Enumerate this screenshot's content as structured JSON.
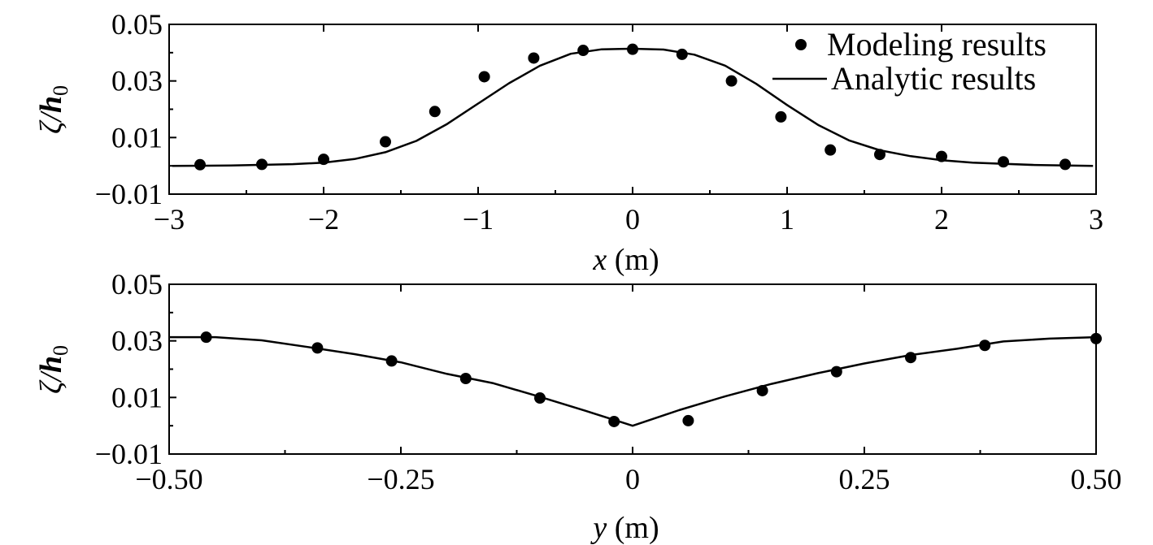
{
  "chart_data": [
    {
      "type": "scatter",
      "xlabel": {
        "var": "x",
        "unit": " (m)"
      },
      "ylabel": {
        "main": "ζ/",
        "var": "h",
        "sub": "0"
      },
      "xlim": [
        -3,
        3
      ],
      "ylim": [
        -0.01,
        0.05
      ],
      "xticks": [
        -3,
        -2,
        -1,
        0,
        1,
        2,
        3
      ],
      "xtick_labels": [
        "−3",
        "−2",
        "−1",
        "0",
        "1",
        "2",
        "3"
      ],
      "yticks": [
        -0.01,
        0.01,
        0.03,
        0.05
      ],
      "ytick_labels": [
        "−0.01",
        "0.01",
        "0.03",
        "0.05"
      ],
      "legend": {
        "position": "top-right",
        "entries": [
          "Modeling results",
          "Analytic results"
        ]
      },
      "series": [
        {
          "name": "Modeling results",
          "kind": "markers",
          "x": [
            -2.8,
            -2.4,
            -2.0,
            -1.6,
            -1.28,
            -0.96,
            -0.64,
            -0.32,
            0.0,
            0.32,
            0.64,
            0.96,
            1.28,
            1.6,
            2.0,
            2.4,
            2.8
          ],
          "y": [
            0.0004,
            0.0005,
            0.0023,
            0.0085,
            0.0192,
            0.0315,
            0.0381,
            0.0408,
            0.0412,
            0.0394,
            0.03,
            0.0173,
            0.0056,
            0.004,
            0.0033,
            0.0014,
            0.0005
          ]
        },
        {
          "name": "Analytic results",
          "kind": "line",
          "x": [
            -2.98,
            -2.6,
            -2.2,
            -2.0,
            -1.8,
            -1.6,
            -1.4,
            -1.2,
            -1.0,
            -0.8,
            -0.6,
            -0.4,
            -0.2,
            0.0,
            0.2,
            0.4,
            0.6,
            0.8,
            1.0,
            1.2,
            1.4,
            1.6,
            1.8,
            2.0,
            2.2,
            2.6,
            2.98
          ],
          "y": [
            0.0,
            0.0001,
            0.0006,
            0.0011,
            0.0024,
            0.0048,
            0.0088,
            0.0148,
            0.022,
            0.0292,
            0.0354,
            0.0396,
            0.0412,
            0.0414,
            0.0411,
            0.0393,
            0.0354,
            0.029,
            0.0215,
            0.0145,
            0.009,
            0.0055,
            0.0034,
            0.002,
            0.0011,
            0.0003,
            0.0
          ]
        }
      ]
    },
    {
      "type": "scatter",
      "xlabel": {
        "var": "y",
        "unit": " (m)"
      },
      "ylabel": {
        "main": "ζ/",
        "var": "h",
        "sub": "0"
      },
      "xlim": [
        -0.5,
        0.5
      ],
      "ylim": [
        -0.01,
        0.05
      ],
      "xticks": [
        -0.5,
        -0.25,
        0,
        0.25,
        0.5
      ],
      "xtick_labels": [
        "−0.50",
        "−0.25",
        "0",
        "0.25",
        "0.50"
      ],
      "yticks": [
        -0.01,
        0.01,
        0.03,
        0.05
      ],
      "ytick_labels": [
        "−0.01",
        "0.01",
        "0.03",
        "0.05"
      ],
      "series": [
        {
          "name": "Modeling results",
          "kind": "markers",
          "x": [
            -0.46,
            -0.34,
            -0.26,
            -0.18,
            -0.1,
            -0.02,
            0.06,
            0.14,
            0.22,
            0.3,
            0.38,
            0.5
          ],
          "y": [
            0.0313,
            0.0275,
            0.0229,
            0.0167,
            0.0098,
            0.0015,
            0.0018,
            0.0124,
            0.0191,
            0.0241,
            0.0284,
            0.0308
          ]
        },
        {
          "name": "Analytic results",
          "kind": "line",
          "x": [
            -0.5,
            -0.45,
            -0.4,
            -0.35,
            -0.3,
            -0.25,
            -0.2,
            -0.15,
            -0.1,
            -0.05,
            0.0,
            0.05,
            0.1,
            0.15,
            0.2,
            0.25,
            0.3,
            0.35,
            0.4,
            0.45,
            0.5
          ],
          "y": [
            0.0313,
            0.0313,
            0.0302,
            0.0278,
            0.0253,
            0.0224,
            0.0183,
            0.015,
            0.0102,
            0.0052,
            0.0,
            0.0055,
            0.0104,
            0.0148,
            0.0186,
            0.022,
            0.025,
            0.0272,
            0.0298,
            0.0308,
            0.0313
          ]
        }
      ]
    }
  ]
}
